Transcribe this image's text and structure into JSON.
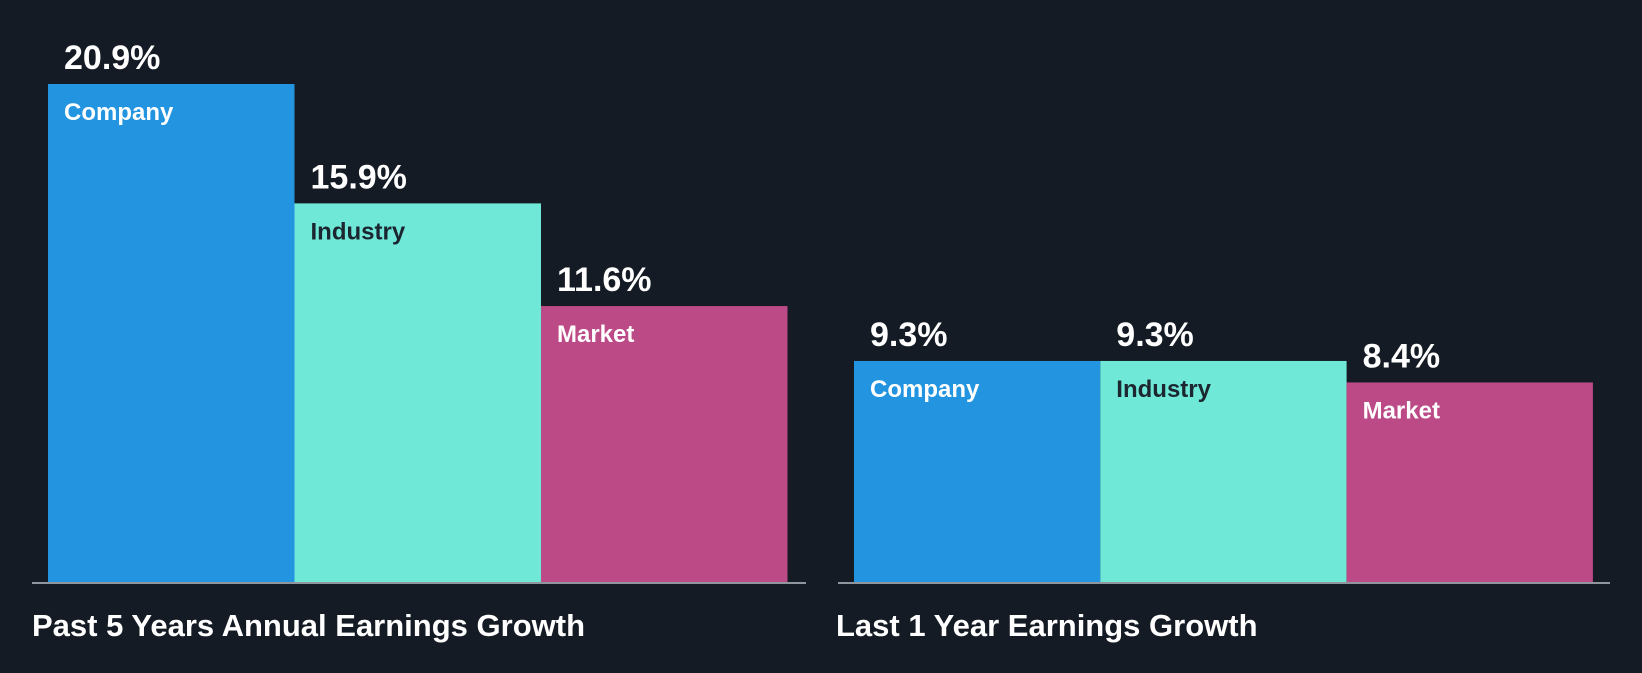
{
  "chart_data": [
    {
      "type": "bar",
      "title": "Past 5 Years Annual Earnings Growth",
      "categories": [
        "Company",
        "Industry",
        "Market"
      ],
      "values": [
        20.9,
        15.9,
        11.6
      ],
      "value_labels": [
        "20.9%",
        "15.9%",
        "11.6%"
      ],
      "unit": "%",
      "xlabel": "",
      "ylabel": "",
      "ylim": [
        0,
        20.9
      ],
      "grid": false,
      "legend": "none"
    },
    {
      "type": "bar",
      "title": "Last 1 Year Earnings Growth",
      "categories": [
        "Company",
        "Industry",
        "Market"
      ],
      "values": [
        9.3,
        9.3,
        8.4
      ],
      "value_labels": [
        "9.3%",
        "9.3%",
        "8.4%"
      ],
      "unit": "%",
      "xlabel": "",
      "ylabel": "",
      "ylim": [
        0,
        20.9
      ],
      "grid": false,
      "legend": "none"
    }
  ],
  "colors": {
    "background": "#151b24",
    "company": "#2394e0",
    "industry": "#6fe8d7",
    "market": "#bb4a87",
    "baseline": "#8f969e",
    "text_light": "#ffffff",
    "text_dark": "#1c2630"
  }
}
